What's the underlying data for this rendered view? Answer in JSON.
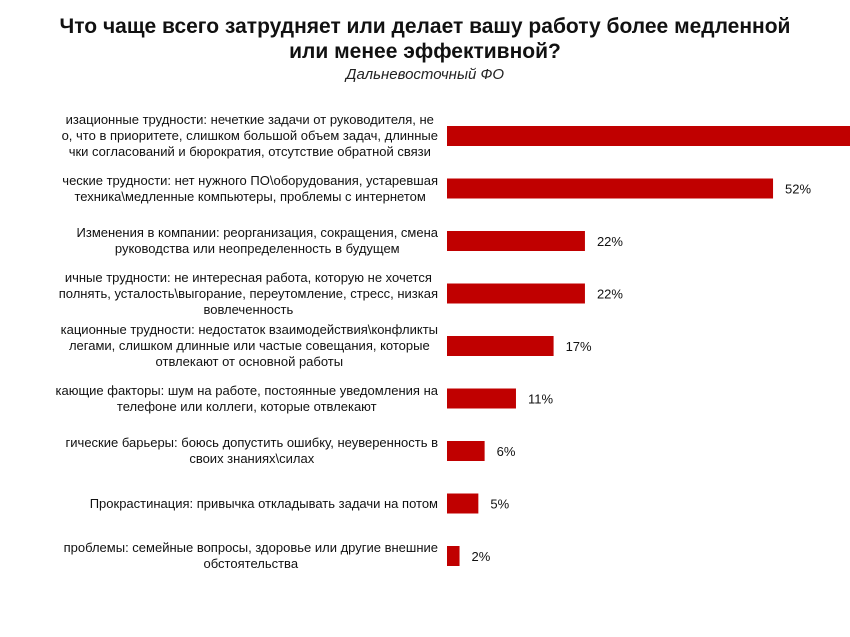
{
  "chart_data": {
    "type": "bar",
    "orientation": "horizontal",
    "title": "Что чаще всего затрудняет или делает вашу работу более медленной или менее эффективной?",
    "title_lines": [
      "Что чаще всего затрудняет или делает вашу работу более медленной",
      "или менее эффективной?"
    ],
    "subtitle": "Дальневосточный  ФО",
    "categories": [
      [
        "изационные трудности: нечеткие задачи от руководителя, не",
        "о, что в приоритете, слишком большой объем задач, длинные",
        "чки согласований и бюрократия, отсутствие обратной связи"
      ],
      [
        "ческие трудности: нет нужного ПО\\оборудования, устаревшая",
        "техника\\медленные компьютеры, проблемы с интернетом"
      ],
      [
        "Изменения в компании: реорганизация, сокращения, смена",
        "руководства или неопределенность в будущем"
      ],
      [
        "ичные трудности: не интересная работа, которую не хочется",
        "полнять, усталость\\выгорание, переутомление, стресс, низкая",
        "вовлеченность"
      ],
      [
        "кационные трудности: недостаток взаимодействия\\конфликты",
        "легами, слишком длинные или частые совещания, которые",
        "отвлекают от основной работы"
      ],
      [
        "кающие факторы: шум на работе, постоянные уведомления на",
        "телефоне или  коллеги, которые отвлекают"
      ],
      [
        "гические барьеры: боюсь допустить ошибку, неуверенность в",
        "своих знаниях\\силах"
      ],
      [
        "Прокрастинация: привычка откладывать задачи на потом"
      ],
      [
        "проблемы: семейные вопросы, здоровье или другие внешние",
        "обстоятельства"
      ]
    ],
    "values": [
      null,
      52,
      22,
      22,
      17,
      11,
      6,
      5,
      2
    ],
    "value_labels": [
      "",
      "52%",
      "22%",
      "22%",
      "17%",
      "11%",
      "6%",
      "5%",
      "2%"
    ],
    "xlim": [
      0,
      100
    ],
    "grid": false,
    "legend": "none",
    "bar_color": "#c00000"
  }
}
